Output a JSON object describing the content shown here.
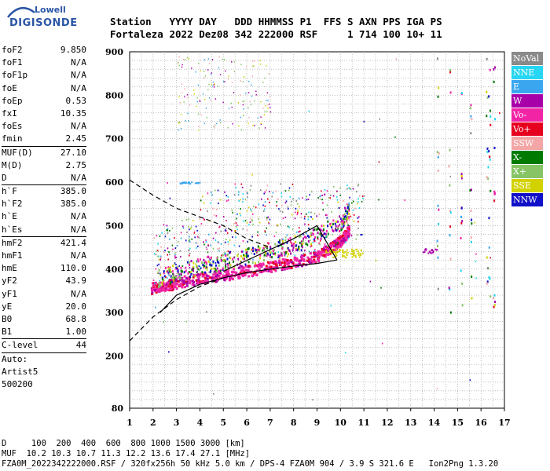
{
  "logo": {
    "line1": "Lowell",
    "line2": "DIGISONDE"
  },
  "header": {
    "labels": [
      "Station",
      "YYYY",
      "DAY",
      "DDD",
      "HHMMSS",
      "P1",
      "FFS",
      "S",
      "AXN",
      "PPS",
      "IGA",
      "PS"
    ],
    "values": [
      "Fortaleza",
      "2022",
      "Dez08",
      "342",
      "222000",
      "RSF",
      "",
      "1",
      "714",
      "100",
      "10+",
      "11"
    ]
  },
  "params": {
    "group1": [
      {
        "name": "foF2",
        "value": "9.850"
      },
      {
        "name": "foF1",
        "value": "N/A"
      },
      {
        "name": "foF1p",
        "value": "N/A"
      },
      {
        "name": "foE",
        "value": "N/A"
      },
      {
        "name": "foEp",
        "value": "0.53"
      },
      {
        "name": "fxI",
        "value": "10.35"
      },
      {
        "name": "foEs",
        "value": "N/A"
      },
      {
        "name": "fmin",
        "value": "2.45"
      }
    ],
    "group2": [
      {
        "name": "MUF(D)",
        "value": "27.10"
      },
      {
        "name": "M(D)",
        "value": "2.75"
      },
      {
        "name": "D",
        "value": "N/A"
      }
    ],
    "group3": [
      {
        "name": "h`F",
        "value": "385.0"
      },
      {
        "name": "h`F2",
        "value": "385.0"
      },
      {
        "name": "h`E",
        "value": "N/A"
      },
      {
        "name": "h`Es",
        "value": "N/A"
      }
    ],
    "group4": [
      {
        "name": "hmF2",
        "value": "421.4"
      },
      {
        "name": "hmF1",
        "value": "N/A"
      },
      {
        "name": "hmE",
        "value": "110.0"
      },
      {
        "name": "yF2",
        "value": "43.9"
      },
      {
        "name": "yF1",
        "value": "N/A"
      },
      {
        "name": "yE",
        "value": "20.0"
      },
      {
        "name": "B0",
        "value": "68.8"
      },
      {
        "name": "B1",
        "value": "1.00"
      }
    ],
    "group5": [
      {
        "name": "C-level",
        "value": "44"
      }
    ],
    "auto": [
      "Auto:",
      "Artist5",
      "500200"
    ]
  },
  "chart_data": {
    "type": "scatter",
    "xlim": [
      1,
      17
    ],
    "ylim": [
      80,
      900
    ],
    "x_ticks": [
      1,
      2,
      3,
      4,
      5,
      6,
      7,
      8,
      9,
      10,
      11,
      12,
      13,
      14,
      15,
      16,
      17
    ],
    "y_ticks": [
      80,
      200,
      300,
      400,
      500,
      600,
      700,
      800,
      900
    ],
    "grid": true,
    "legend_position": "right",
    "legend": [
      {
        "name": "NoVal",
        "color": "#8a8a8a"
      },
      {
        "name": "NNE",
        "color": "#26d6f2"
      },
      {
        "name": "E",
        "color": "#3aa6f0"
      },
      {
        "name": "W",
        "color": "#a800a8"
      },
      {
        "name": "Vo-",
        "color": "#f224a6"
      },
      {
        "name": "Vo+",
        "color": "#e6001e"
      },
      {
        "name": "SSW",
        "color": "#f4a6a6"
      },
      {
        "name": "X-",
        "color": "#007a00"
      },
      {
        "name": "X+",
        "color": "#86c466"
      },
      {
        "name": "SSE",
        "color": "#d2d200"
      },
      {
        "name": "NNW",
        "color": "#1010c8"
      }
    ],
    "profile_solid": [
      [
        2.3,
        300
      ],
      [
        3,
        340
      ],
      [
        4,
        365
      ],
      [
        5,
        380
      ],
      [
        6,
        392
      ],
      [
        7,
        400
      ],
      [
        8,
        407
      ],
      [
        9,
        413
      ],
      [
        9.85,
        421
      ]
    ],
    "profile_solid_upper": [
      [
        5,
        395
      ],
      [
        6,
        420
      ],
      [
        7,
        445
      ],
      [
        8,
        470
      ],
      [
        9,
        500
      ],
      [
        9.85,
        421
      ]
    ],
    "profile_dashed": [
      [
        1,
        235
      ],
      [
        2,
        290
      ],
      [
        3,
        330
      ],
      [
        4,
        360
      ],
      [
        5,
        380
      ]
    ],
    "profile_dashed_upper": [
      [
        1,
        605
      ],
      [
        2,
        570
      ],
      [
        3,
        540
      ],
      [
        4,
        520
      ],
      [
        5,
        500
      ],
      [
        6,
        470
      ],
      [
        7,
        450
      ]
    ],
    "trace_o": [
      [
        1.9,
        345
      ],
      [
        2.5,
        350
      ],
      [
        3,
        358
      ],
      [
        4,
        368
      ],
      [
        5,
        375
      ],
      [
        6,
        385
      ],
      [
        7,
        395
      ],
      [
        8,
        405
      ],
      [
        9,
        420
      ],
      [
        9.6,
        440
      ],
      [
        10,
        455
      ],
      [
        10.35,
        480
      ]
    ],
    "trace_x": [
      [
        2.2,
        360
      ],
      [
        3,
        375
      ],
      [
        4,
        388
      ],
      [
        5,
        400
      ],
      [
        6,
        410
      ],
      [
        7,
        425
      ],
      [
        8,
        440
      ],
      [
        9,
        460
      ],
      [
        10,
        490
      ],
      [
        10.35,
        520
      ]
    ],
    "spread": {
      "f_range": [
        2,
        11
      ],
      "h_range": [
        360,
        590
      ]
    }
  },
  "footer": {
    "line1": "D     100  200  400  600  800 1000 1500 3000 [km]",
    "line2": "MUF  10.2 10.3 10.7 11.3 12.2 13.6 17.4 27.1 [MHz]",
    "line3": "FZA0M_2022342222000.RSF / 320fx256h 50 kHz 5.0 km / DPS-4 FZA0M 904 / 3.9 S 321.6 E   Ion2Png 1.3.20"
  }
}
